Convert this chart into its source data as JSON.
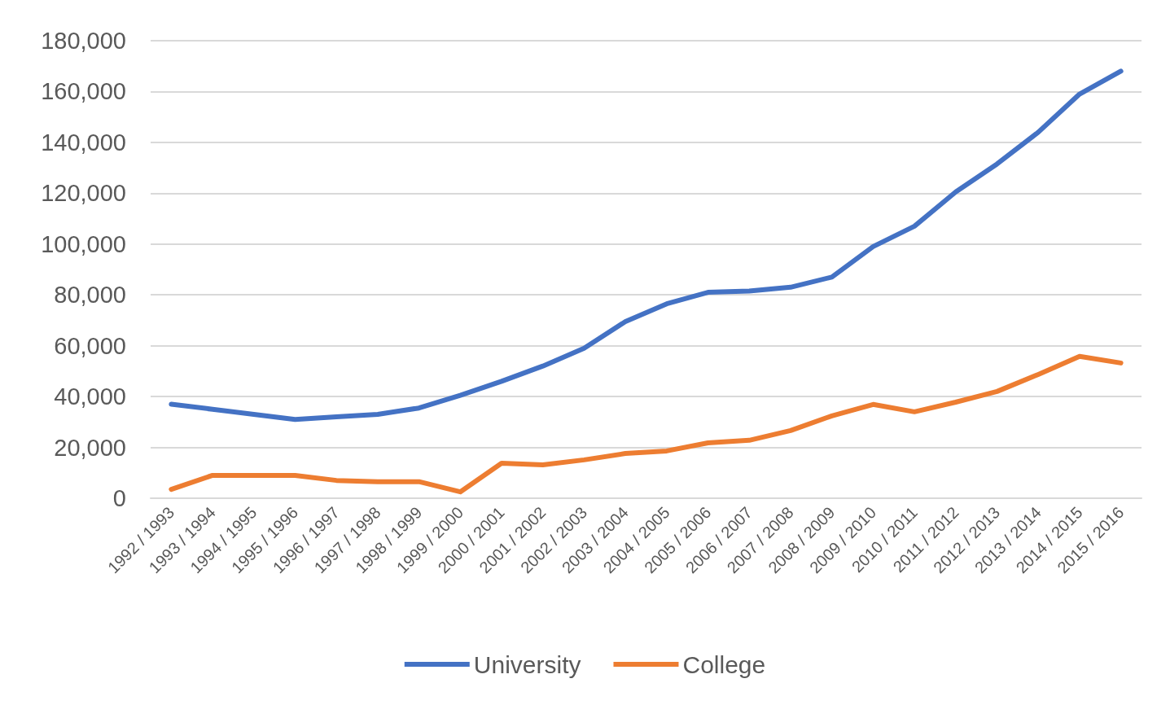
{
  "chart_data": {
    "type": "line",
    "categories": [
      "1992 / 1993",
      "1993 / 1994",
      "1994 / 1995",
      "1995 / 1996",
      "1996 / 1997",
      "1997 / 1998",
      "1998 / 1999",
      "1999 / 2000",
      "2000 / 2001",
      "2001 / 2002",
      "2002 / 2003",
      "2003 / 2004",
      "2004 / 2005",
      "2005 / 2006",
      "2006 / 2007",
      "2007 / 2008",
      "2008 / 2009",
      "2009 / 2010",
      "2010 / 2011",
      "2011 / 2012",
      "2012 / 2013",
      "2013 / 2014",
      "2014 / 2015",
      "2015 / 2016"
    ],
    "series": [
      {
        "name": "University",
        "color": "#4472c4",
        "values": [
          37000,
          35000,
          33000,
          31000,
          32000,
          33000,
          35500,
          40500,
          46000,
          52000,
          59000,
          69500,
          76500,
          81000,
          81500,
          83000,
          87000,
          99000,
          107000,
          120500,
          131500,
          144000,
          159000,
          168000
        ]
      },
      {
        "name": "College",
        "color": "#ed7d31",
        "values": [
          3500,
          9000,
          9000,
          9000,
          7000,
          6500,
          6500,
          2500,
          13800,
          13100,
          15100,
          17600,
          18600,
          21800,
          22800,
          26600,
          32400,
          36900,
          34000,
          37800,
          42000,
          48700,
          55800,
          53200
        ]
      }
    ],
    "ylim": [
      0,
      180000
    ],
    "yticks": [
      0,
      {
        "value": 20000,
        "label": "20,000"
      },
      {
        "value": 40000,
        "label": "40,000"
      },
      {
        "value": 60000,
        "label": "60,000"
      },
      {
        "value": 80000,
        "label": "80,000"
      },
      {
        "value": 100000,
        "label": "100,000"
      },
      {
        "value": 120000,
        "label": "120,000"
      },
      {
        "value": 140000,
        "label": "140,000"
      },
      {
        "value": 160000,
        "label": "160,000"
      },
      {
        "value": 180000,
        "label": "180,000"
      }
    ],
    "grid": "y",
    "legend": "bottom",
    "marker": "none",
    "line_style": "solid"
  }
}
